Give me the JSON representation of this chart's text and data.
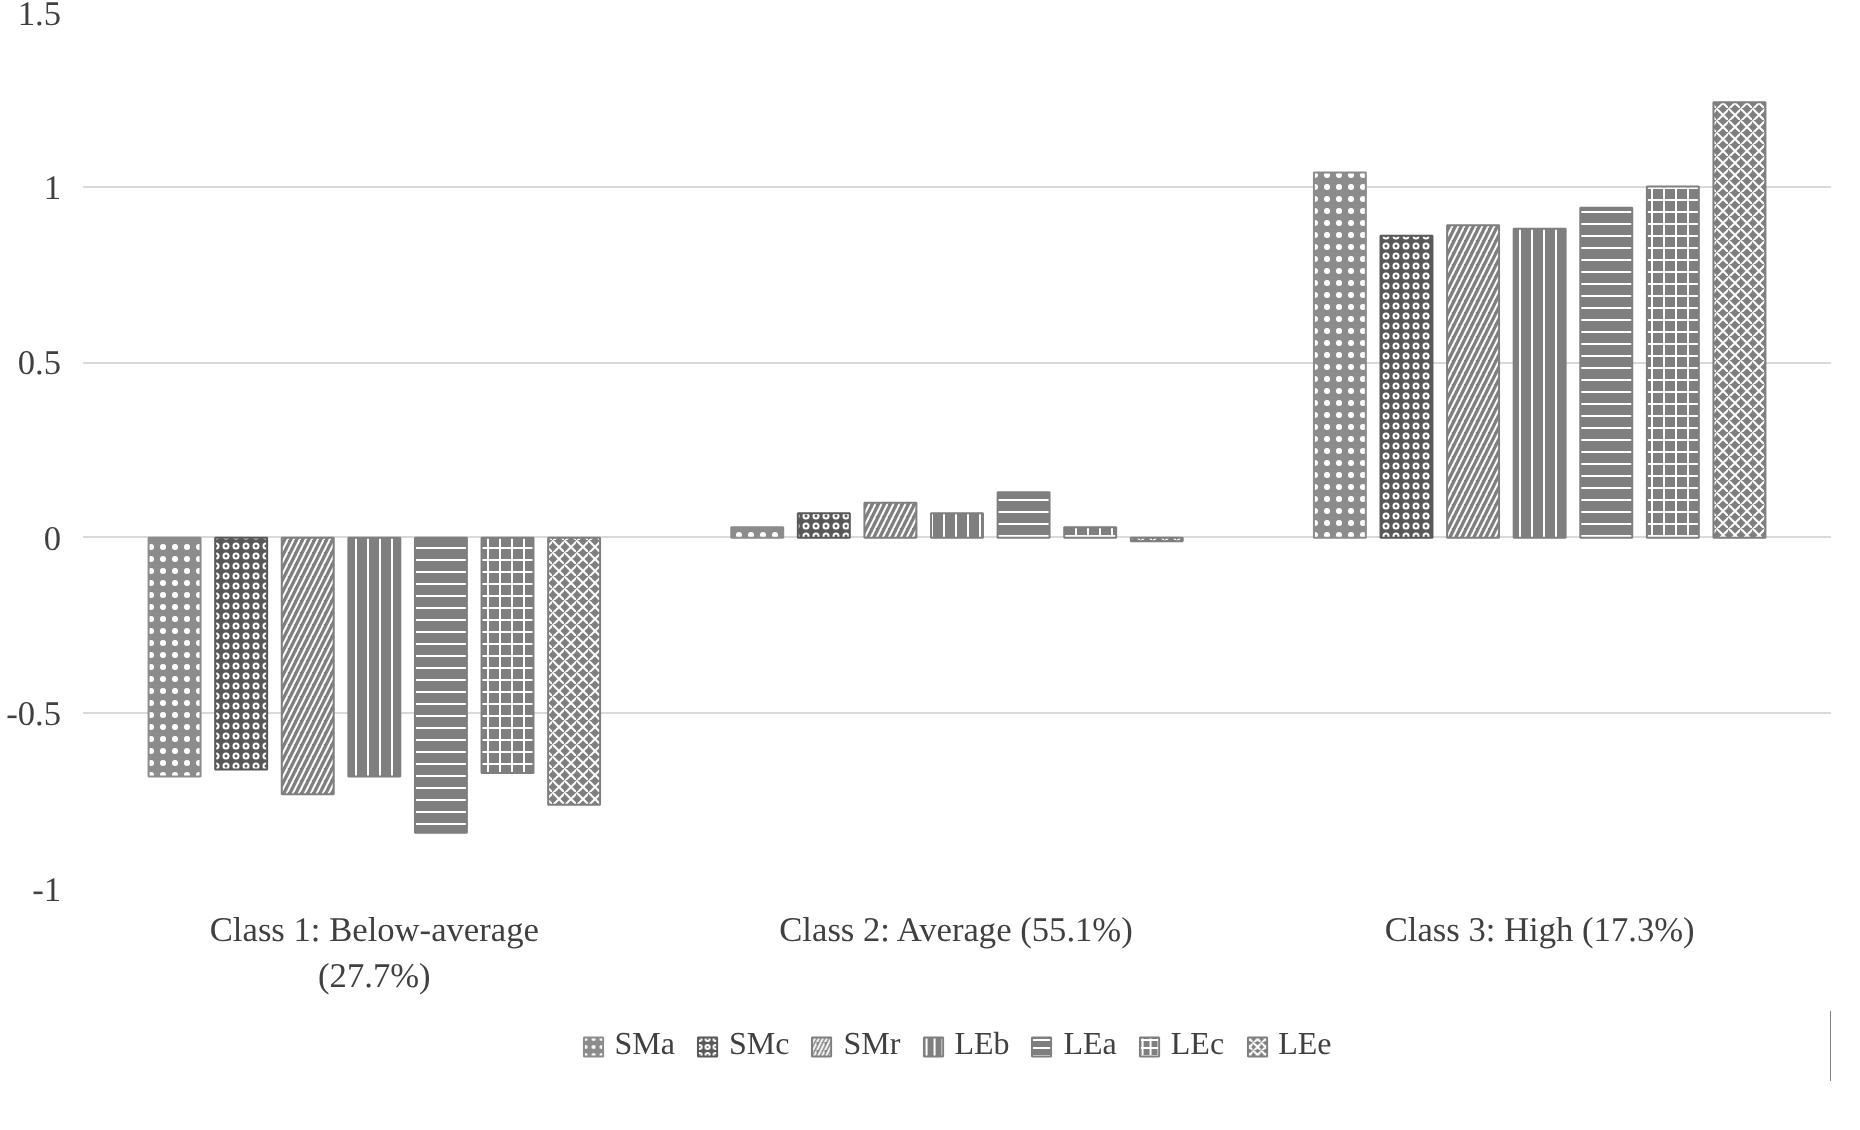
{
  "chart_data": {
    "type": "bar",
    "categories": [
      "Class 1: Below-average (27.7%)",
      "Class 2: Average (55.1%)",
      "Class 3: High (17.3%)"
    ],
    "series": [
      {
        "name": "SMa",
        "color": "#8c8c8c",
        "values": [
          -0.68,
          0.03,
          1.04
        ]
      },
      {
        "name": "SMc",
        "color": "#595959",
        "values": [
          -0.66,
          0.07,
          0.86
        ]
      },
      {
        "name": "SMr",
        "color": "#7f7f7f",
        "values": [
          -0.73,
          0.1,
          0.89
        ]
      },
      {
        "name": "LEb",
        "color": "#7f7f7f",
        "values": [
          -0.68,
          0.07,
          0.88
        ]
      },
      {
        "name": "LEa",
        "color": "#7f7f7f",
        "values": [
          -0.84,
          0.13,
          0.94
        ]
      },
      {
        "name": "LEc",
        "color": "#7f7f7f",
        "values": [
          -0.67,
          0.03,
          1.0
        ]
      },
      {
        "name": "LEe",
        "color": "#7f7f7f",
        "values": [
          -0.76,
          -0.01,
          1.24
        ]
      }
    ],
    "ylim": [
      -1,
      1.5
    ],
    "yticks": [
      -1,
      -0.5,
      0,
      0.5,
      1,
      1.5
    ],
    "grid": "y",
    "legend": "bottom"
  }
}
